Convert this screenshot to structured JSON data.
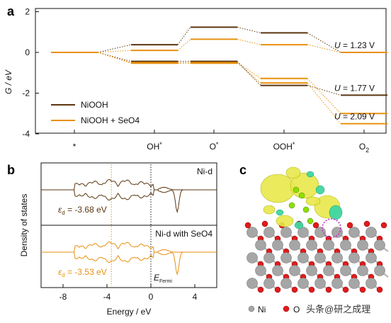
{
  "figure": {
    "panel_labels": [
      "a",
      "b",
      "c"
    ]
  },
  "chart_data": [
    {
      "type": "line",
      "subtype": "free-energy-diagram",
      "panel": "a",
      "ylabel": "G / eV",
      "ylim": [
        -4,
        2
      ],
      "yticks": [
        2,
        0,
        -2,
        -4
      ],
      "categories": [
        "*",
        "OH*",
        "O*",
        "OOH*",
        "O2"
      ],
      "category_labels": [
        {
          "base": "*",
          "sup": "",
          "sub": ""
        },
        {
          "base": "OH",
          "sup": "*",
          "sub": ""
        },
        {
          "base": "O",
          "sup": "*",
          "sub": ""
        },
        {
          "base": "OOH",
          "sup": "*",
          "sub": ""
        },
        {
          "base": "O",
          "sup": "",
          "sub": "2"
        }
      ],
      "legend": {
        "placement": "bottom-left",
        "entries": [
          "NiOOH",
          "NiOOH + SeO4"
        ]
      },
      "colors": {
        "NiOOH": "#5a3510",
        "NiOOH + SeO4": "#e8900e"
      },
      "series": [
        {
          "name": "NiOOH",
          "potential": "0",
          "values": [
            0,
            0.38,
            1.24,
            0.96,
            0
          ]
        },
        {
          "name": "NiOOH",
          "potential": "1.77 V",
          "values": [
            0,
            -0.44,
            -0.44,
            -1.62,
            -2.1
          ]
        },
        {
          "name": "NiOOH + SeO4",
          "potential": "0",
          "values": [
            0,
            0.1,
            0.65,
            0.38,
            0
          ]
        },
        {
          "name": "NiOOH + SeO4",
          "potential": "1.23 V",
          "values": [
            0,
            -0.5,
            -0.5,
            -1.28,
            -3.0
          ]
        },
        {
          "name": "NiOOH + SeO4",
          "potential": "2.09 V",
          "values": [
            0,
            -0.53,
            -0.53,
            -1.5,
            -3.5
          ]
        }
      ],
      "annotations": [
        {
          "var": "U",
          "text": " = 1.23 V",
          "y": 0
        },
        {
          "var": "U",
          "text": " = 1.77 V",
          "y": -2.1
        },
        {
          "var": "U",
          "text": " = 2.09 V",
          "y": -3.5
        }
      ]
    },
    {
      "type": "line",
      "subtype": "density-of-states",
      "panel": "b",
      "xlabel": "Energy / eV",
      "ylabel": "Density of states",
      "xlim": [
        -10,
        6
      ],
      "xticks": [
        -8,
        -4,
        0,
        4
      ],
      "fermi_label": {
        "base": "E",
        "sub": "Fermi"
      },
      "series": [
        {
          "name": "Ni-d",
          "color": "#5a3510",
          "d_band_center": {
            "symbol": "ε",
            "sub": "d",
            "text": " = -3.68 eV",
            "value": -3.68
          }
        },
        {
          "name": "Ni-d with SeO4",
          "color": "#e8900e",
          "d_band_center": {
            "symbol": "ε",
            "sub": "d",
            "text": " = -3.53 eV",
            "value": -3.53
          }
        }
      ]
    }
  ],
  "structure": {
    "panel": "c",
    "legend": [
      {
        "label": "Ni",
        "color": "#a6a6a6"
      },
      {
        "label": "O",
        "color": "#e01b1b"
      }
    ],
    "watermark": "头条@研之成理"
  }
}
